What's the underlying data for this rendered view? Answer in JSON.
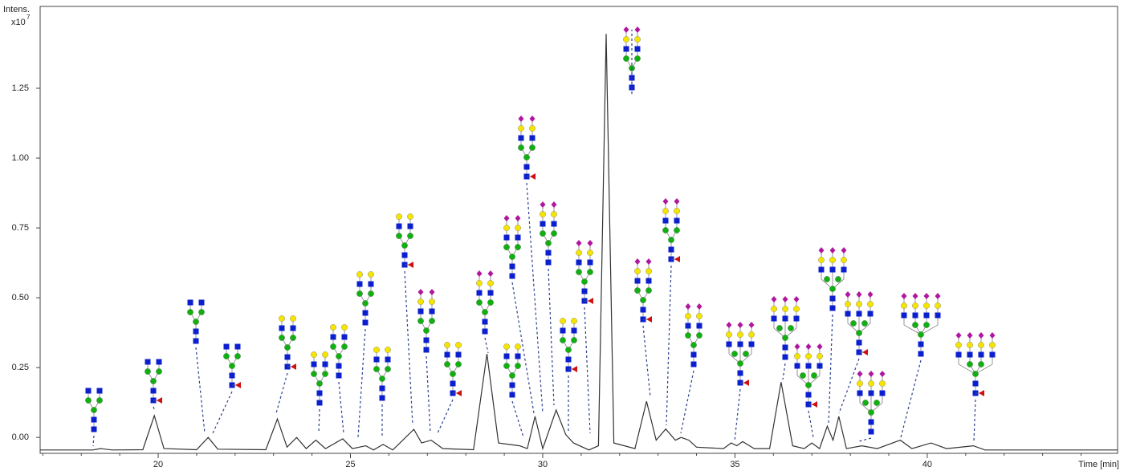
{
  "chart_data": {
    "type": "line",
    "y_label": "Intens.",
    "y_scale": "x10",
    "y_scale_exp": "7",
    "x_label": "Time [min]",
    "xlim": [
      16.93,
      44.95
    ],
    "ylim": [
      -0.057,
      1.543
    ],
    "xticks": [
      20,
      25,
      30,
      35,
      40
    ],
    "xticks_minor": [
      17,
      18,
      19,
      21,
      22,
      23,
      24,
      26,
      27,
      28,
      29,
      31,
      32,
      33,
      34,
      36,
      37,
      38,
      39,
      41,
      42,
      43,
      44
    ],
    "yticks": [
      {
        "value": 0,
        "label": "0.00"
      },
      0.25,
      {
        "value": 0.5,
        "label": "0.50"
      },
      0.75,
      {
        "value": 1,
        "label": "1.00"
      },
      1.25
    ],
    "series": [
      {
        "color": "#333333",
        "x": [
          16.93,
          18.3,
          18.5,
          18.8,
          19.6,
          19.9,
          20.15,
          21.0,
          21.3,
          21.55,
          22.8,
          23.1,
          23.35,
          23.6,
          23.85,
          24.1,
          24.35,
          24.8,
          25.05,
          25.4,
          25.6,
          25.85,
          26.1,
          26.65,
          26.85,
          27.1,
          27.4,
          28.2,
          28.55,
          28.85,
          29.4,
          29.6,
          29.8,
          30.0,
          30.35,
          30.6,
          30.8,
          31.2,
          31.45,
          31.65,
          31.85,
          32.4,
          32.7,
          32.95,
          33.2,
          33.45,
          33.6,
          33.8,
          34.0,
          34.7,
          34.9,
          35.05,
          35.2,
          35.5,
          35.9,
          36.2,
          36.5,
          36.8,
          37.0,
          37.2,
          37.4,
          37.55,
          37.7,
          37.9,
          38.3,
          38.7,
          39.3,
          39.6,
          40.1,
          40.5,
          41.2,
          41.5,
          44.95
        ],
        "values": [
          -0.045,
          -0.045,
          -0.04,
          -0.045,
          -0.044,
          0.078,
          -0.04,
          -0.044,
          0.0,
          -0.042,
          -0.044,
          0.066,
          -0.035,
          0.0,
          -0.04,
          -0.01,
          -0.04,
          -0.005,
          -0.04,
          -0.03,
          -0.045,
          -0.025,
          -0.045,
          0.029,
          -0.02,
          -0.01,
          -0.04,
          -0.044,
          0.299,
          -0.02,
          -0.03,
          -0.04,
          0.075,
          -0.04,
          0.098,
          0.01,
          -0.02,
          -0.045,
          -0.03,
          1.445,
          -0.02,
          -0.04,
          0.129,
          -0.01,
          0.03,
          -0.01,
          0.0,
          -0.01,
          -0.035,
          -0.04,
          -0.02,
          -0.03,
          -0.015,
          -0.04,
          -0.04,
          0.198,
          -0.03,
          -0.04,
          -0.02,
          -0.04,
          0.04,
          -0.01,
          0.075,
          -0.04,
          -0.03,
          -0.04,
          -0.01,
          -0.04,
          -0.02,
          -0.04,
          -0.03,
          -0.045,
          -0.045
        ]
      }
    ]
  }
}
